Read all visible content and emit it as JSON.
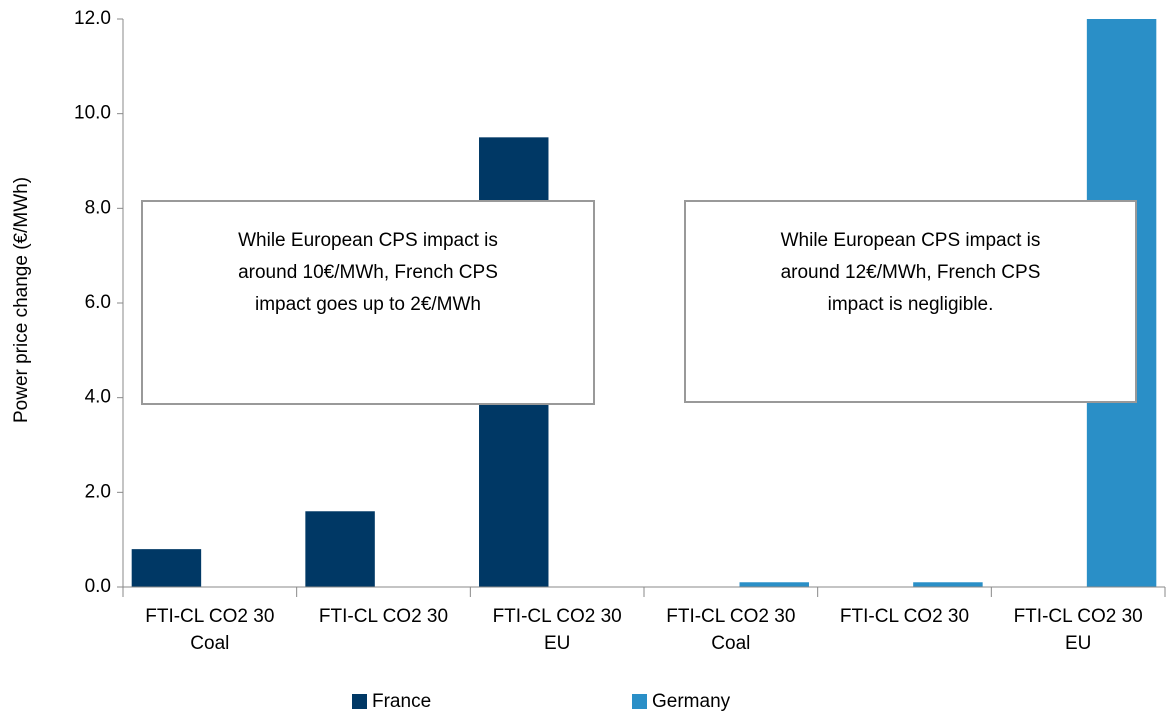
{
  "chart_data": {
    "type": "bar",
    "y_label": "Power price change (€/MWh)",
    "categories": [
      [
        "FTI-CL CO2 30",
        "Coal"
      ],
      [
        "FTI-CL CO2 30"
      ],
      [
        "FTI-CL CO2 30",
        "EU"
      ],
      [
        "FTI-CL CO2 30",
        "Coal"
      ],
      [
        "FTI-CL CO2 30"
      ],
      [
        "FTI-CL CO2 30",
        "EU"
      ]
    ],
    "series": [
      {
        "name": "France",
        "color": "#003865",
        "values": [
          0.8,
          1.6,
          9.5,
          0,
          0,
          0
        ]
      },
      {
        "name": "Germany",
        "color": "#2a8fc7",
        "values": [
          0,
          0,
          0,
          0.1,
          0.1,
          12.0
        ]
      }
    ],
    "ylim": [
      0,
      12
    ],
    "yticks": [
      {
        "value": 0,
        "label": "0.0"
      },
      {
        "value": 2,
        "label": "2.0"
      },
      {
        "value": 4,
        "label": "4.0"
      },
      {
        "value": 6,
        "label": "6.0"
      },
      {
        "value": 8,
        "label": "8.0"
      },
      {
        "value": 10,
        "label": "10.0"
      },
      {
        "value": 12,
        "label": "12.0"
      }
    ],
    "legend": "bottom",
    "annotations": [
      {
        "lines": [
          "While European CPS impact is",
          "around 10€/MWh, French CPS",
          "impact goes up to 2€/MWh"
        ]
      },
      {
        "lines": [
          "While European CPS impact is",
          "around 12€/MWh, French CPS",
          "impact is negligible."
        ]
      }
    ]
  }
}
